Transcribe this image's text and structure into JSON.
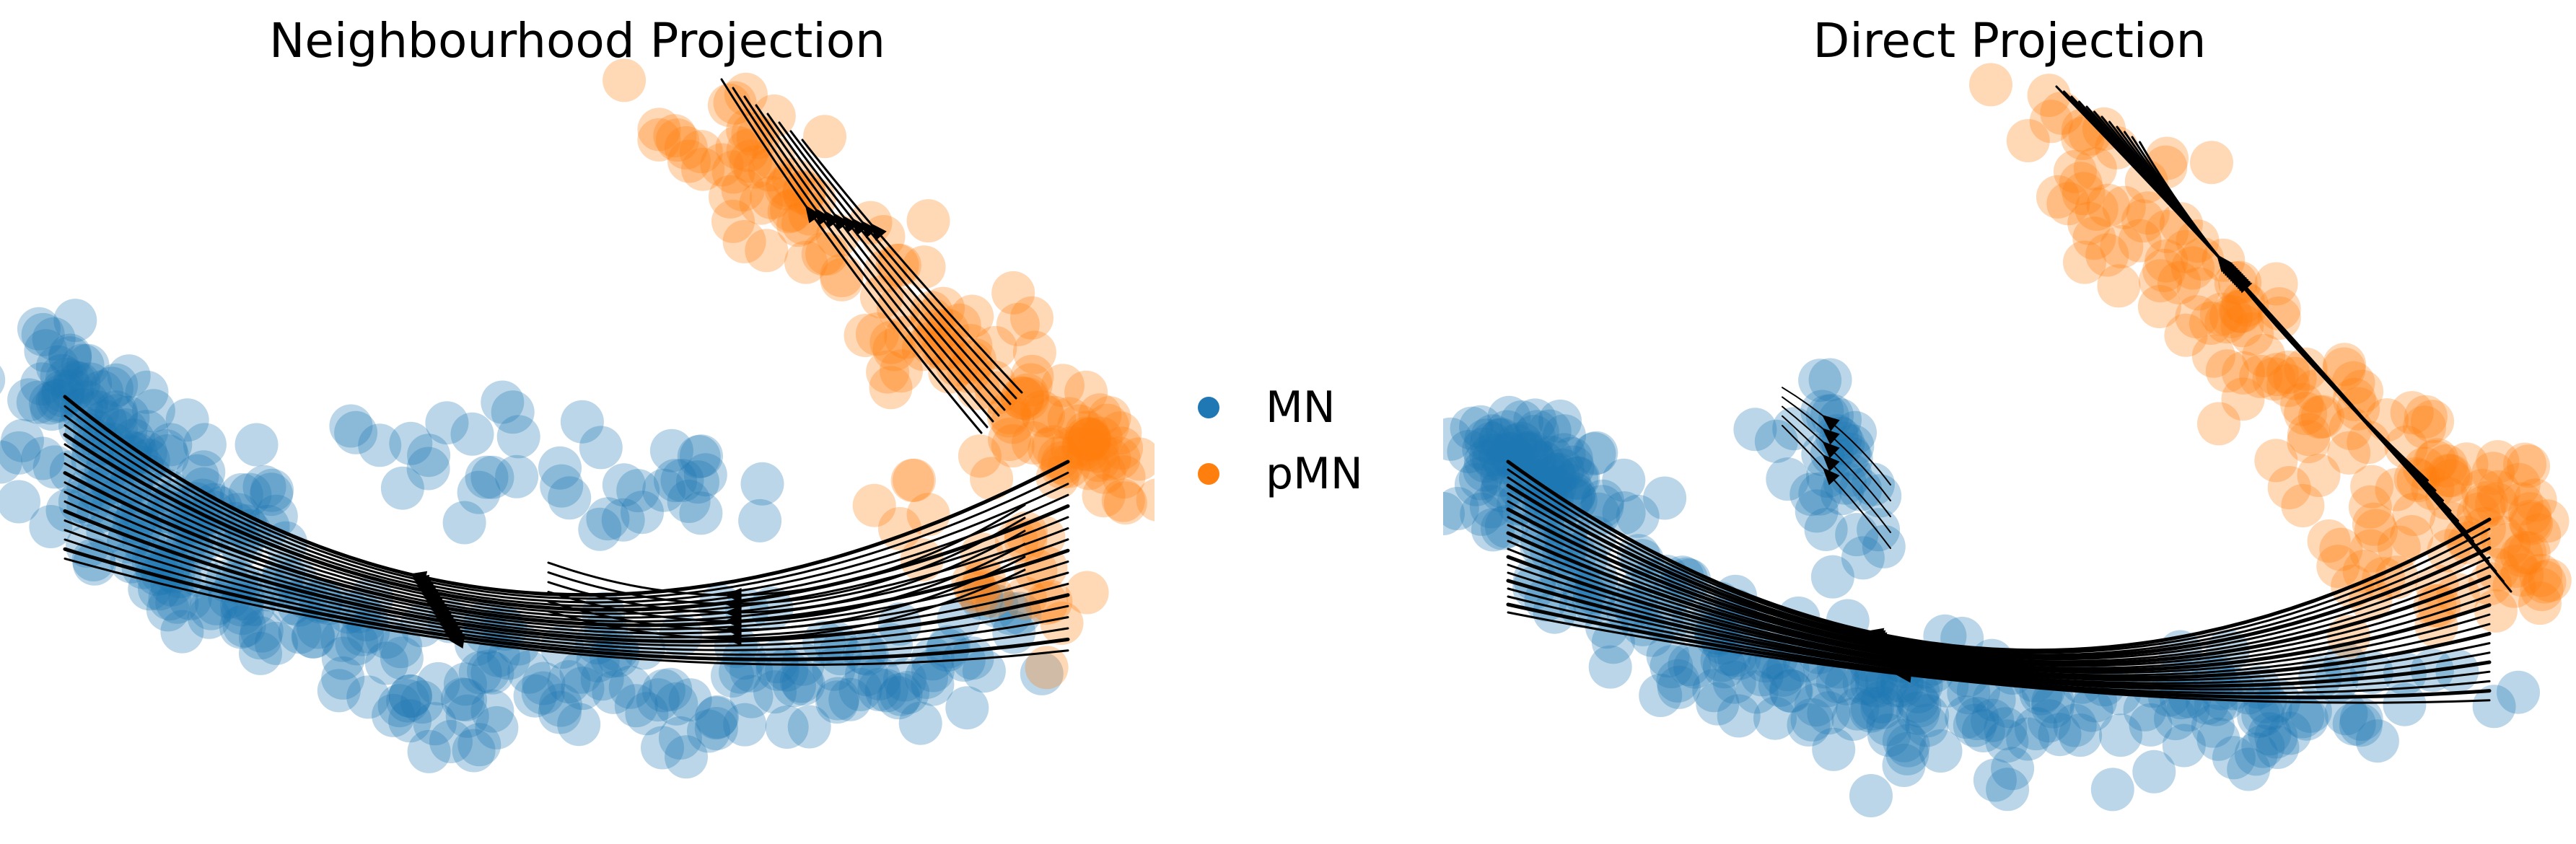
{
  "chart_data": [
    {
      "type": "scatter",
      "title": "Neighbourhood Projection",
      "xlabel": "",
      "ylabel": "",
      "axes_visible": false,
      "grid": false,
      "overlay": "velocity streamlines with arrowheads",
      "series": [
        {
          "name": "MN",
          "color": "#1f77b4",
          "alpha": 0.3
        },
        {
          "name": "pMN",
          "color": "#ff7f0e",
          "alpha": 0.3
        }
      ]
    },
    {
      "type": "scatter",
      "title": "Direct Projection",
      "xlabel": "",
      "ylabel": "",
      "axes_visible": false,
      "grid": false,
      "overlay": "velocity streamlines with arrowheads",
      "series": [
        {
          "name": "MN",
          "color": "#1f77b4",
          "alpha": 0.3
        },
        {
          "name": "pMN",
          "color": "#ff7f0e",
          "alpha": 0.3
        }
      ]
    }
  ],
  "legend": {
    "position": "center",
    "items": [
      {
        "label": "MN",
        "color": "#1f77b4"
      },
      {
        "label": "pMN",
        "color": "#ff7f0e"
      }
    ]
  }
}
